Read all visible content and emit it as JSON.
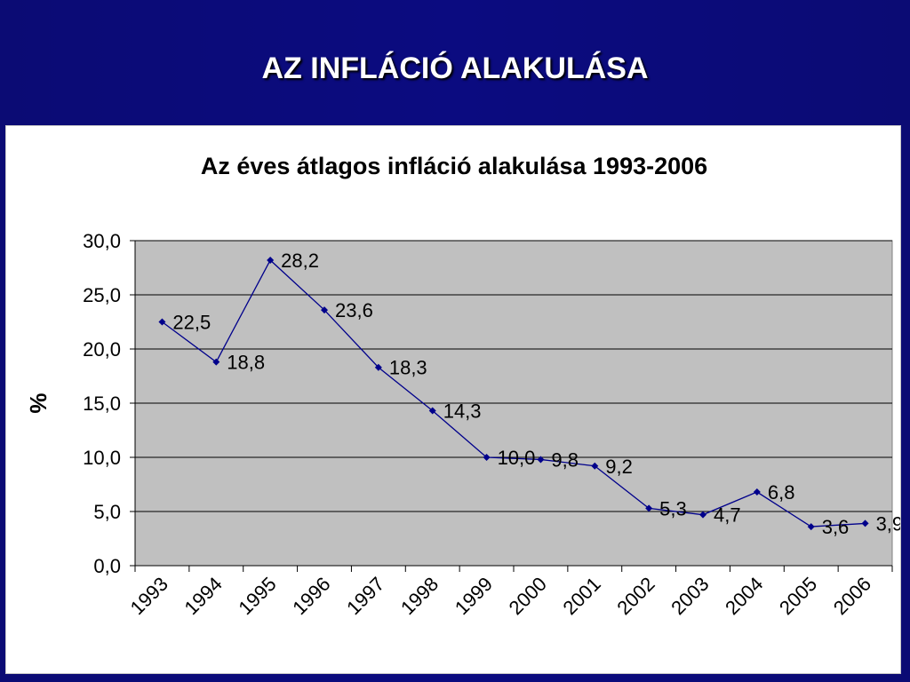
{
  "slide": {
    "title": "AZ INFLÁCIÓ ALAKULÁSA",
    "background_color": "#0b0b78"
  },
  "chart_data": {
    "type": "line",
    "title": "Az éves átlagos  infláció alakulása 1993-2006",
    "xlabel": "",
    "ylabel": "%",
    "categories": [
      "1993",
      "1994",
      "1995",
      "1996",
      "1997",
      "1998",
      "1999",
      "2000",
      "2001",
      "2002",
      "2003",
      "2004",
      "2005",
      "2006"
    ],
    "series": [
      {
        "values": [
          22.5,
          18.8,
          28.2,
          23.6,
          18.3,
          14.3,
          10.0,
          9.8,
          9.2,
          5.3,
          4.7,
          6.8,
          3.6,
          3.9
        ],
        "labels": [
          "22,5",
          "18,8",
          "28,2",
          "23,6",
          "18,3",
          "14,3",
          "10,0",
          "9,8",
          "9,2",
          "5,3",
          "4,7",
          "6,8",
          "3,6",
          "3,9"
        ],
        "color": "#00008b"
      }
    ],
    "yticks": [
      "0,0",
      "5,0",
      "10,0",
      "15,0",
      "20,0",
      "25,0",
      "30,0"
    ],
    "ylim": [
      0,
      30
    ],
    "grid": true,
    "plot_background": "#c0c0c0",
    "legend": "none"
  }
}
